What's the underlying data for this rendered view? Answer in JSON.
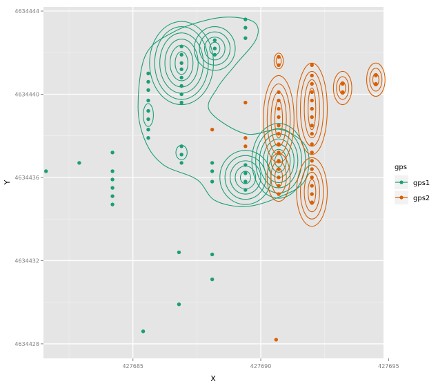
{
  "chart_data": {
    "type": "scatter",
    "xlabel": "X",
    "ylabel": "Y",
    "xlim": [
      427681.5,
      427694.8
    ],
    "ylim": [
      4634427.3,
      4634444.2
    ],
    "xticks": [
      427685,
      427690,
      427695
    ],
    "yticks": [
      4634428,
      4634432,
      4634436,
      4634440,
      4634444
    ],
    "xtick_labels": [
      "427685",
      "427690",
      "427695"
    ],
    "ytick_labels": [
      "4634428",
      "4634432",
      "4634436",
      "4634440",
      "4634444"
    ],
    "grid": true,
    "legend": {
      "title": "gps",
      "position": "right"
    },
    "series": [
      {
        "name": "gps1",
        "color": "#1b9e77",
        "points": [
          [
            427681.6,
            4634436.3
          ],
          [
            427682.9,
            4634436.7
          ],
          [
            427684.2,
            4634437.2
          ],
          [
            427684.2,
            4634436.3
          ],
          [
            427684.2,
            4634435.9
          ],
          [
            427684.2,
            4634435.5
          ],
          [
            427684.2,
            4634435.1
          ],
          [
            427684.2,
            4634434.7
          ],
          [
            427685.6,
            4634441.0
          ],
          [
            427685.6,
            4634440.6
          ],
          [
            427685.6,
            4634440.2
          ],
          [
            427685.6,
            4634439.7
          ],
          [
            427685.6,
            4634439.2
          ],
          [
            427685.6,
            4634438.8
          ],
          [
            427685.6,
            4634438.3
          ],
          [
            427685.6,
            4634437.9
          ],
          [
            427686.9,
            4634442.3
          ],
          [
            427686.9,
            4634441.9
          ],
          [
            427686.9,
            4634441.5
          ],
          [
            427686.9,
            4634441.2
          ],
          [
            427686.9,
            4634440.8
          ],
          [
            427686.9,
            4634440.4
          ],
          [
            427686.9,
            4634440.0
          ],
          [
            427686.9,
            4634439.6
          ],
          [
            427686.9,
            4634437.5
          ],
          [
            427686.9,
            4634437.1
          ],
          [
            427686.9,
            4634436.7
          ],
          [
            427688.2,
            4634442.6
          ],
          [
            427688.2,
            4634442.2
          ],
          [
            427688.2,
            4634441.9
          ],
          [
            427688.1,
            4634436.7
          ],
          [
            427688.1,
            4634436.3
          ],
          [
            427688.1,
            4634435.8
          ],
          [
            427689.4,
            4634443.6
          ],
          [
            427689.4,
            4634443.2
          ],
          [
            427689.4,
            4634442.7
          ],
          [
            427689.4,
            4634436.6
          ],
          [
            427689.4,
            4634436.2
          ],
          [
            427689.4,
            4634435.8
          ],
          [
            427689.4,
            4634435.4
          ],
          [
            427686.8,
            4634432.4
          ],
          [
            427688.1,
            4634432.3
          ],
          [
            427688.1,
            4634431.1
          ],
          [
            427686.8,
            4634429.9
          ],
          [
            427685.4,
            4634428.6
          ]
        ]
      },
      {
        "name": "gps2",
        "color": "#d95f02",
        "points": [
          [
            427690.7,
            4634441.8
          ],
          [
            427690.7,
            4634441.4
          ],
          [
            427690.7,
            4634440.1
          ],
          [
            427690.7,
            4634439.7
          ],
          [
            427690.7,
            4634439.3
          ],
          [
            427690.7,
            4634438.9
          ],
          [
            427690.7,
            4634438.5
          ],
          [
            427690.7,
            4634438.1
          ],
          [
            427690.7,
            4634437.6
          ],
          [
            427690.7,
            4634437.2
          ],
          [
            427690.7,
            4634436.8
          ],
          [
            427690.7,
            4634436.4
          ],
          [
            427690.7,
            4634436.0
          ],
          [
            427690.7,
            4634435.6
          ],
          [
            427690.7,
            4634435.2
          ],
          [
            427692.0,
            4634441.4
          ],
          [
            427692.0,
            4634440.9
          ],
          [
            427692.0,
            4634440.5
          ],
          [
            427692.0,
            4634440.1
          ],
          [
            427692.0,
            4634439.7
          ],
          [
            427692.0,
            4634439.3
          ],
          [
            427692.0,
            4634438.9
          ],
          [
            427692.0,
            4634438.5
          ],
          [
            427692.0,
            4634438.1
          ],
          [
            427692.0,
            4634437.6
          ],
          [
            427692.0,
            4634437.2
          ],
          [
            427692.0,
            4634436.8
          ],
          [
            427692.0,
            4634436.4
          ],
          [
            427692.0,
            4634436.0
          ],
          [
            427692.0,
            4634435.6
          ],
          [
            427692.0,
            4634435.2
          ],
          [
            427692.0,
            4634434.8
          ],
          [
            427693.2,
            4634440.5
          ],
          [
            427693.2,
            4634440.1
          ],
          [
            427694.5,
            4634440.9
          ],
          [
            427694.5,
            4634440.5
          ],
          [
            427689.4,
            4634439.6
          ],
          [
            427688.1,
            4634438.3
          ],
          [
            427689.4,
            4634437.9
          ],
          [
            427689.4,
            4634437.5
          ],
          [
            427690.6,
            4634428.2
          ]
        ]
      }
    ],
    "contours": [
      {
        "series": "gps1",
        "color": "#1b9e77",
        "levels": [
          {
            "cx": 427686.9,
            "cy": 4634441.5,
            "rx": [
              0.25,
              0.45,
              0.65,
              0.85,
              1.05,
              1.25
            ],
            "ry": [
              0.55,
              0.85,
              1.15,
              1.45,
              1.75,
              2.0
            ]
          },
          {
            "cx": 427688.2,
            "cy": 4634442.2,
            "rx": [
              0.2,
              0.4,
              0.6,
              0.8
            ],
            "ry": [
              0.3,
              0.55,
              0.8,
              1.05
            ]
          },
          {
            "cx": 427689.4,
            "cy": 4634436.0,
            "rx": [
              0.2,
              0.4,
              0.6,
              0.8,
              1.0
            ],
            "ry": [
              0.3,
              0.55,
              0.8,
              1.05,
              1.3
            ]
          },
          {
            "cx": 427690.7,
            "cy": 4634436.8,
            "rx": [
              0.15,
              0.3,
              0.45,
              0.6,
              0.75,
              0.9,
              1.05
            ],
            "ry": [
              0.3,
              0.55,
              0.8,
              1.05,
              1.3,
              1.55,
              1.8
            ]
          },
          {
            "cx": 427685.6,
            "cy": 4634439.0,
            "rx": [
              0.2
            ],
            "ry": [
              0.55
            ]
          },
          {
            "cx": 427686.9,
            "cy": 4634437.2,
            "rx": [
              0.22
            ],
            "ry": [
              0.35
            ]
          }
        ],
        "outer": [
          [
            427685.5,
            4634441.9
          ],
          [
            427686.6,
            4634443.0
          ],
          [
            427688.0,
            4634443.6
          ],
          [
            427689.0,
            4634443.7
          ],
          [
            427689.8,
            4634443.4
          ],
          [
            427689.8,
            4634442.6
          ],
          [
            427689.0,
            4634441.4
          ],
          [
            427688.3,
            4634440.3
          ],
          [
            427688.0,
            4634439.2
          ],
          [
            427689.4,
            4634438.1
          ],
          [
            427690.8,
            4634438.3
          ],
          [
            427691.8,
            4634437.4
          ],
          [
            427691.7,
            4634435.8
          ],
          [
            427690.6,
            4634435.0
          ],
          [
            427689.4,
            4634434.6
          ],
          [
            427688.2,
            4634434.9
          ],
          [
            427687.5,
            4634435.9
          ],
          [
            427686.2,
            4634436.6
          ],
          [
            427685.5,
            4634437.7
          ],
          [
            427685.2,
            4634439.4
          ]
        ]
      },
      {
        "series": "gps2",
        "color": "#d95f02",
        "levels": [
          {
            "cx": 427690.7,
            "cy": 4634441.6,
            "rx": [
              0.1,
              0.18
            ],
            "ry": [
              0.22,
              0.38
            ]
          },
          {
            "cx": 427690.7,
            "cy": 4634438.8,
            "rx": [
              0.15,
              0.3,
              0.45,
              0.6
            ],
            "ry": [
              0.9,
              1.3,
              1.7,
              2.1
            ]
          },
          {
            "cx": 427690.7,
            "cy": 4634436.0,
            "rx": [
              0.15,
              0.3,
              0.45
            ],
            "ry": [
              0.45,
              0.8,
              1.15
            ]
          },
          {
            "cx": 427692.0,
            "cy": 4634439.3,
            "rx": [
              0.15,
              0.3,
              0.45,
              0.6
            ],
            "ry": [
              1.0,
              1.4,
              1.8,
              2.2
            ]
          },
          {
            "cx": 427692.0,
            "cy": 4634435.3,
            "rx": [
              0.15,
              0.3,
              0.45,
              0.6
            ],
            "ry": [
              0.6,
              0.95,
              1.3,
              1.65
            ]
          },
          {
            "cx": 427693.2,
            "cy": 4634440.3,
            "rx": [
              0.12,
              0.24,
              0.36
            ],
            "ry": [
              0.3,
              0.55,
              0.8
            ]
          },
          {
            "cx": 427694.5,
            "cy": 4634440.7,
            "rx": [
              0.12,
              0.24,
              0.36
            ],
            "ry": [
              0.3,
              0.55,
              0.8
            ]
          }
        ]
      }
    ]
  }
}
